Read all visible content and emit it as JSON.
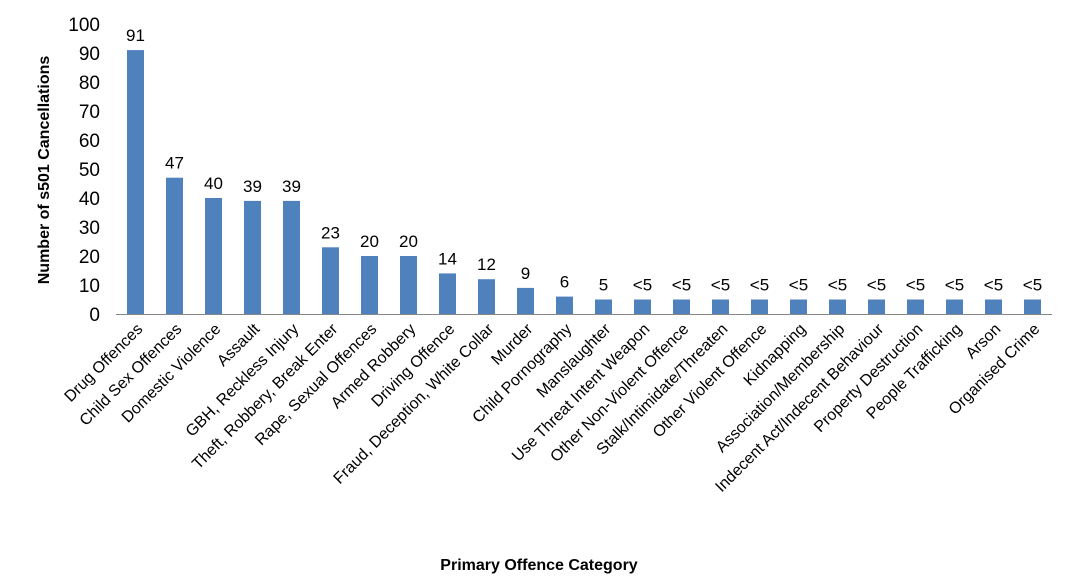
{
  "chart_data": {
    "type": "bar",
    "title": "",
    "xlabel": "Primary Offence Category",
    "ylabel": "Number of s501 Cancellations",
    "ylim": [
      0,
      100
    ],
    "yticks": [
      0,
      10,
      20,
      30,
      40,
      50,
      60,
      70,
      80,
      90,
      100
    ],
    "grid": false,
    "legend": "none",
    "bar_color": "#4f81bd",
    "categories": [
      "Drug Offences",
      "Child Sex Offences",
      "Domestic Violence",
      "Assault",
      "GBH, Reckless Injury",
      "Theft, Robbery, Break Enter",
      "Rape, Sexual Offences",
      "Armed Robbery",
      "Driving Offence",
      "Fraud, Deception, White Collar",
      "Murder",
      "Child Pornography",
      "Manslaughter",
      "Use Threat Intent Weapon",
      "Other Non-Violent Offence",
      "Stalk/Intimidate/Threaten",
      "Other Violent Offence",
      "Kidnapping",
      "Association/Membership",
      "Indecent Act/Indecent Behaviour",
      "Property Destruction",
      "People Trafficking",
      "Arson",
      "Organised Crime"
    ],
    "values": [
      91,
      47,
      40,
      39,
      39,
      23,
      20,
      20,
      14,
      12,
      9,
      6,
      5,
      5,
      5,
      5,
      5,
      5,
      5,
      5,
      5,
      5,
      5,
      5
    ],
    "data_labels": [
      "91",
      "47",
      "40",
      "39",
      "39",
      "23",
      "20",
      "20",
      "14",
      "12",
      "9",
      "6",
      "5",
      "<5",
      "<5",
      "<5",
      "<5",
      "<5",
      "<5",
      "<5",
      "<5",
      "<5",
      "<5",
      "<5"
    ]
  }
}
